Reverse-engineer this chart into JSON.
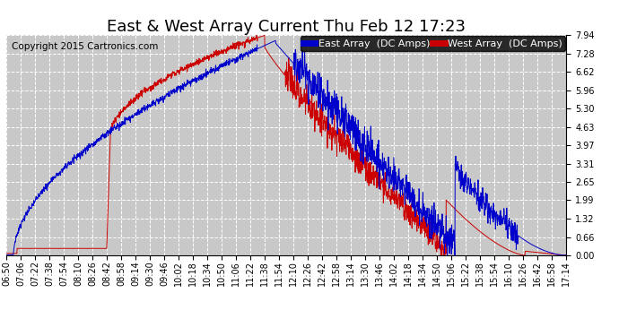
{
  "title": "East & West Array Current Thu Feb 12 17:23",
  "copyright": "Copyright 2015 Cartronics.com",
  "east_label": "East Array  (DC Amps)",
  "west_label": "West Array  (DC Amps)",
  "east_color": "#0000CC",
  "west_color": "#CC0000",
  "background_color": "#FFFFFF",
  "plot_bg_color": "#C8C8C8",
  "grid_color": "#FFFFFF",
  "ylim": [
    0.0,
    7.94
  ],
  "yticks": [
    0.0,
    0.66,
    1.32,
    1.99,
    2.65,
    3.31,
    3.97,
    4.63,
    5.3,
    5.96,
    6.62,
    7.28,
    7.94
  ],
  "xtick_labels": [
    "06:50",
    "07:06",
    "07:22",
    "07:38",
    "07:54",
    "08:10",
    "08:26",
    "08:42",
    "08:58",
    "09:14",
    "09:30",
    "09:46",
    "10:02",
    "10:18",
    "10:34",
    "10:50",
    "11:06",
    "11:22",
    "11:38",
    "11:54",
    "12:10",
    "12:26",
    "12:42",
    "12:58",
    "13:14",
    "13:30",
    "13:46",
    "14:02",
    "14:18",
    "14:34",
    "14:50",
    "15:06",
    "15:22",
    "15:38",
    "15:54",
    "16:10",
    "16:26",
    "16:42",
    "16:58",
    "17:14"
  ],
  "title_fontsize": 13,
  "copyright_fontsize": 7.5,
  "legend_fontsize": 8,
  "tick_fontsize": 7
}
